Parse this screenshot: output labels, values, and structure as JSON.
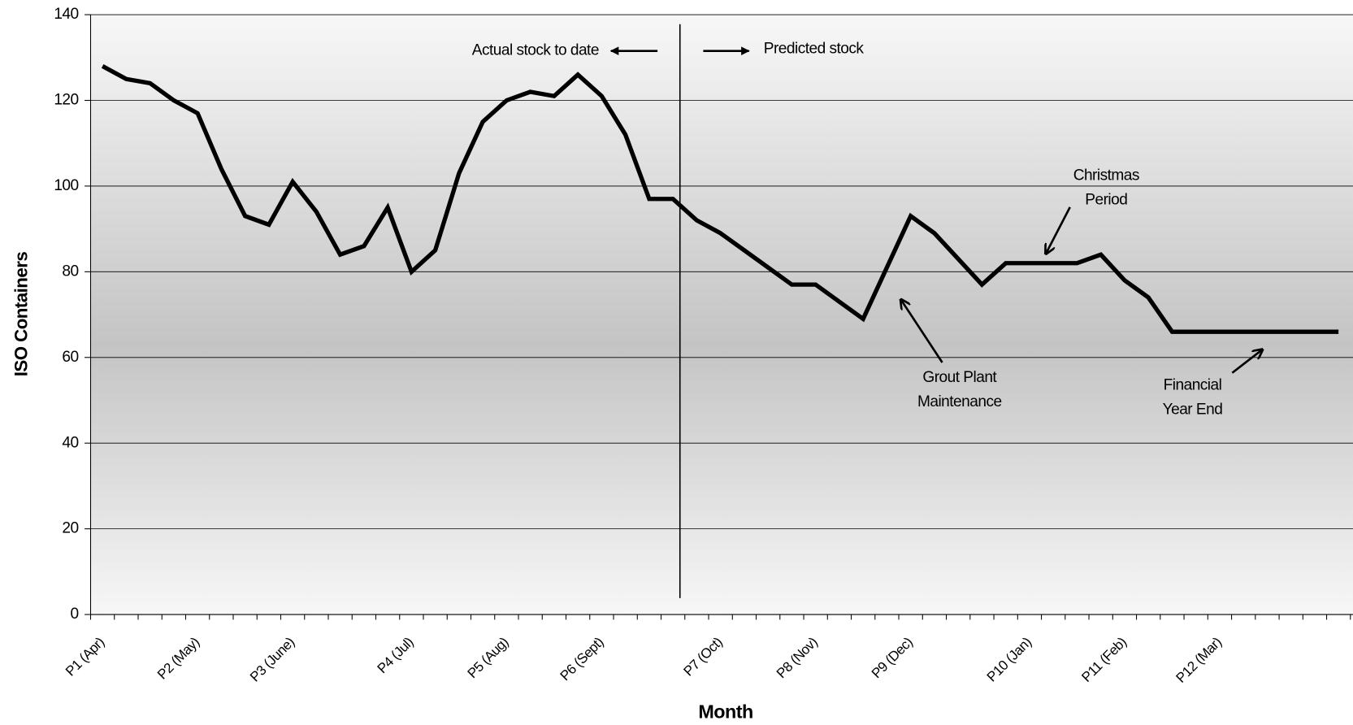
{
  "chart_data": {
    "type": "line",
    "x_label": "Month",
    "y_label": "ISO Containers",
    "categories": [
      "P1 (Apr)",
      null,
      null,
      null,
      "P2 (May)",
      null,
      null,
      null,
      "P3 (June)",
      null,
      null,
      null,
      null,
      "P4 (Jul)",
      null,
      null,
      null,
      "P5 (Aug)",
      null,
      null,
      null,
      "P6 (Sept)",
      null,
      null,
      null,
      null,
      "P7 (Oct)",
      null,
      null,
      null,
      "P8 (Nov)",
      null,
      null,
      null,
      "P9 (Dec)",
      null,
      null,
      null,
      null,
      "P10 (Jan)",
      null,
      null,
      null,
      "P11 (Feb)",
      null,
      null,
      null,
      "P12 (Mar)",
      null,
      null,
      null,
      null,
      null
    ],
    "series": [
      {
        "name": "ISO Containers",
        "color": "#000000",
        "values": [
          128,
          125,
          124,
          120,
          117,
          104,
          93,
          91,
          101,
          94,
          84,
          86,
          95,
          80,
          85,
          103,
          115,
          120,
          122,
          121,
          126,
          121,
          112,
          97,
          97,
          92,
          89,
          85,
          81,
          77,
          77,
          73,
          69,
          81,
          93,
          89,
          83,
          77,
          82,
          82,
          82,
          82,
          84,
          78,
          74,
          66,
          66,
          66,
          66,
          66,
          66,
          66,
          66
        ]
      }
    ],
    "ylim": [
      0,
      140
    ],
    "yticks": [
      0,
      20,
      40,
      60,
      80,
      100,
      120,
      140
    ],
    "grid": true,
    "annotations": [
      {
        "lines": [
          "Actual stock to date"
        ]
      },
      {
        "lines": [
          "Predicted stock"
        ]
      },
      {
        "lines": [
          "Christmas",
          "Period"
        ]
      },
      {
        "lines": [
          "Grout Plant",
          "Maintenance"
        ]
      },
      {
        "lines": [
          "Financial",
          "Year End"
        ]
      }
    ]
  }
}
